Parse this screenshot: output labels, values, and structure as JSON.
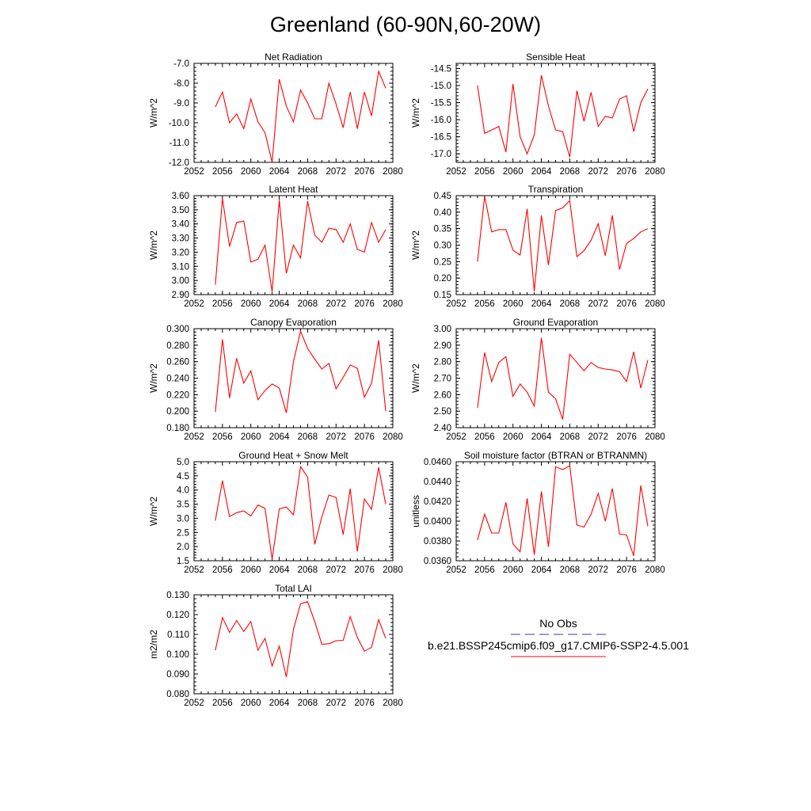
{
  "title": "Greenland (60-90N,60-20W)",
  "colors": {
    "series": "#ff0000",
    "obs": "#3a3aa0",
    "axis": "#000000"
  },
  "legend": {
    "obs_label": "No Obs",
    "model_label": "b.e21.BSSP245cmip6.f09_g17.CMIP6-SSP2-4.5.001"
  },
  "chart_data": [
    {
      "type": "line",
      "title": "Net Radiation",
      "ylabel": "W/m^2",
      "xlim": [
        2052,
        2080
      ],
      "ylim": [
        -12.0,
        -7.0
      ],
      "xticks": [
        2052,
        2056,
        2060,
        2064,
        2068,
        2072,
        2076,
        2080
      ],
      "yticks": [
        "-7.0",
        "-8.0",
        "-9.0",
        "-10.0",
        "-11.0",
        "-12.0"
      ],
      "x": [
        2055,
        2056,
        2057,
        2058,
        2059,
        2060,
        2061,
        2062,
        2063,
        2064,
        2065,
        2066,
        2067,
        2068,
        2069,
        2070,
        2071,
        2072,
        2073,
        2074,
        2075,
        2076,
        2077,
        2078,
        2079
      ],
      "series": [
        {
          "values": [
            -9.2,
            -8.45,
            -10.0,
            -9.55,
            -10.3,
            -8.8,
            -9.95,
            -10.5,
            -12.0,
            -7.8,
            -9.15,
            -9.95,
            -8.35,
            -9.0,
            -9.8,
            -9.8,
            -8.0,
            -9.05,
            -10.25,
            -8.45,
            -10.3,
            -8.45,
            -9.65,
            -7.4,
            -8.25
          ]
        }
      ]
    },
    {
      "type": "line",
      "title": "Sensible Heat",
      "ylabel": "W/m^2",
      "xlim": [
        2052,
        2080
      ],
      "ylim": [
        -17.25,
        -14.35
      ],
      "xticks": [
        2052,
        2056,
        2060,
        2064,
        2068,
        2072,
        2076,
        2080
      ],
      "yticks": [
        "-14.5",
        "-15.0",
        "-15.5",
        "-16.0",
        "-16.5",
        "-17.0"
      ],
      "x": [
        2055,
        2056,
        2057,
        2058,
        2059,
        2060,
        2061,
        2062,
        2063,
        2064,
        2065,
        2066,
        2067,
        2068,
        2069,
        2070,
        2071,
        2072,
        2073,
        2074,
        2075,
        2076,
        2077,
        2078,
        2079
      ],
      "series": [
        {
          "values": [
            -15.0,
            -16.4,
            -16.3,
            -16.2,
            -16.95,
            -14.95,
            -16.5,
            -17.0,
            -16.45,
            -14.7,
            -15.6,
            -16.3,
            -16.35,
            -17.1,
            -15.15,
            -16.05,
            -15.2,
            -16.2,
            -15.9,
            -15.95,
            -15.4,
            -15.3,
            -16.35,
            -15.5,
            -15.1
          ]
        }
      ]
    },
    {
      "type": "line",
      "title": "Latent Heat",
      "ylabel": "W/m^2",
      "xlim": [
        2052,
        2080
      ],
      "ylim": [
        2.9,
        3.6
      ],
      "xticks": [
        2052,
        2056,
        2060,
        2064,
        2068,
        2072,
        2076,
        2080
      ],
      "yticks": [
        "3.60",
        "3.50",
        "3.40",
        "3.30",
        "3.20",
        "3.10",
        "3.00",
        "2.90"
      ],
      "x": [
        2055,
        2056,
        2057,
        2058,
        2059,
        2060,
        2061,
        2062,
        2063,
        2064,
        2065,
        2066,
        2067,
        2068,
        2069,
        2070,
        2071,
        2072,
        2073,
        2074,
        2075,
        2076,
        2077,
        2078,
        2079
      ],
      "series": [
        {
          "values": [
            2.97,
            3.58,
            3.24,
            3.41,
            3.42,
            3.13,
            3.15,
            3.25,
            2.92,
            3.57,
            3.05,
            3.25,
            3.16,
            3.56,
            3.32,
            3.27,
            3.37,
            3.36,
            3.27,
            3.4,
            3.22,
            3.2,
            3.41,
            3.27,
            3.36
          ]
        }
      ]
    },
    {
      "type": "line",
      "title": "Transpiration",
      "ylabel": "W/m^2",
      "xlim": [
        2052,
        2080
      ],
      "ylim": [
        0.15,
        0.45
      ],
      "xticks": [
        2052,
        2056,
        2060,
        2064,
        2068,
        2072,
        2076,
        2080
      ],
      "yticks": [
        "0.45",
        "0.40",
        "0.35",
        "0.30",
        "0.25",
        "0.20",
        "0.15"
      ],
      "x": [
        2055,
        2056,
        2057,
        2058,
        2059,
        2060,
        2061,
        2062,
        2063,
        2064,
        2065,
        2066,
        2067,
        2068,
        2069,
        2070,
        2071,
        2072,
        2073,
        2074,
        2075,
        2076,
        2077,
        2078,
        2079
      ],
      "series": [
        {
          "values": [
            0.25,
            0.448,
            0.34,
            0.347,
            0.347,
            0.285,
            0.27,
            0.41,
            0.16,
            0.39,
            0.24,
            0.405,
            0.413,
            0.435,
            0.265,
            0.283,
            0.315,
            0.365,
            0.268,
            0.39,
            0.226,
            0.305,
            0.32,
            0.34,
            0.35
          ]
        }
      ]
    },
    {
      "type": "line",
      "title": "Canopy Evaporation",
      "ylabel": "W/m^2",
      "xlim": [
        2052,
        2080
      ],
      "ylim": [
        0.18,
        0.3
      ],
      "xticks": [
        2052,
        2056,
        2060,
        2064,
        2068,
        2072,
        2076,
        2080
      ],
      "yticks": [
        "0.300",
        "0.280",
        "0.260",
        "0.240",
        "0.220",
        "0.200",
        "0.180"
      ],
      "x": [
        2055,
        2056,
        2057,
        2058,
        2059,
        2060,
        2061,
        2062,
        2063,
        2064,
        2065,
        2066,
        2067,
        2068,
        2069,
        2070,
        2071,
        2072,
        2073,
        2074,
        2075,
        2076,
        2077,
        2078,
        2079
      ],
      "series": [
        {
          "values": [
            0.199,
            0.287,
            0.216,
            0.264,
            0.234,
            0.249,
            0.214,
            0.225,
            0.233,
            0.228,
            0.198,
            0.26,
            0.297,
            0.276,
            0.263,
            0.251,
            0.258,
            0.227,
            0.241,
            0.256,
            0.252,
            0.217,
            0.234,
            0.286,
            0.2
          ]
        }
      ]
    },
    {
      "type": "line",
      "title": "Ground Evaporation",
      "ylabel": "W/m^2",
      "xlim": [
        2052,
        2080
      ],
      "ylim": [
        2.4,
        3.0
      ],
      "xticks": [
        2052,
        2056,
        2060,
        2064,
        2068,
        2072,
        2076,
        2080
      ],
      "yticks": [
        "3.00",
        "2.90",
        "2.80",
        "2.70",
        "2.60",
        "2.50",
        "2.40"
      ],
      "x": [
        2055,
        2056,
        2057,
        2058,
        2059,
        2060,
        2061,
        2062,
        2063,
        2064,
        2065,
        2066,
        2067,
        2068,
        2069,
        2070,
        2071,
        2072,
        2073,
        2074,
        2075,
        2076,
        2077,
        2078,
        2079
      ],
      "series": [
        {
          "values": [
            2.52,
            2.855,
            2.68,
            2.795,
            2.83,
            2.59,
            2.665,
            2.615,
            2.53,
            2.945,
            2.615,
            2.575,
            2.45,
            2.845,
            2.795,
            2.745,
            2.795,
            2.765,
            2.755,
            2.75,
            2.74,
            2.68,
            2.86,
            2.64,
            2.81
          ]
        }
      ]
    },
    {
      "type": "line",
      "title": "Ground Heat + Snow Melt",
      "ylabel": "W/m^2",
      "xlim": [
        2052,
        2080
      ],
      "ylim": [
        1.5,
        5.0
      ],
      "xticks": [
        2052,
        2056,
        2060,
        2064,
        2068,
        2072,
        2076,
        2080
      ],
      "yticks": [
        "5.0",
        "4.5",
        "4.0",
        "3.5",
        "3.0",
        "2.5",
        "2.0",
        "1.5"
      ],
      "x": [
        2055,
        2056,
        2057,
        2058,
        2059,
        2060,
        2061,
        2062,
        2063,
        2064,
        2065,
        2066,
        2067,
        2068,
        2069,
        2070,
        2071,
        2072,
        2073,
        2074,
        2075,
        2076,
        2077,
        2078,
        2079
      ],
      "series": [
        {
          "values": [
            2.92,
            4.33,
            3.06,
            3.2,
            3.26,
            3.08,
            3.47,
            3.35,
            1.55,
            3.33,
            3.4,
            3.12,
            4.83,
            4.45,
            2.08,
            3.05,
            3.82,
            3.74,
            2.42,
            4.05,
            1.83,
            3.68,
            3.32,
            4.8,
            3.5
          ]
        }
      ]
    },
    {
      "type": "line",
      "title": "Soil moisture factor (BTRAN or BTRANMN)",
      "ylabel": "unitless",
      "xlim": [
        2052,
        2080
      ],
      "ylim": [
        0.036,
        0.046
      ],
      "xticks": [
        2052,
        2056,
        2060,
        2064,
        2068,
        2072,
        2076,
        2080
      ],
      "yticks": [
        "0.0460",
        "0.0440",
        "0.0420",
        "0.0400",
        "0.0380",
        "0.0360"
      ],
      "x": [
        2055,
        2056,
        2057,
        2058,
        2059,
        2060,
        2061,
        2062,
        2063,
        2064,
        2065,
        2066,
        2067,
        2068,
        2069,
        2070,
        2071,
        2072,
        2073,
        2074,
        2075,
        2076,
        2077,
        2078,
        2079
      ],
      "series": [
        {
          "values": [
            0.0381,
            0.0407,
            0.0388,
            0.0388,
            0.0419,
            0.0377,
            0.0369,
            0.0423,
            0.0366,
            0.043,
            0.0374,
            0.0455,
            0.0452,
            0.0456,
            0.0396,
            0.0394,
            0.0407,
            0.0428,
            0.04,
            0.0433,
            0.0387,
            0.0386,
            0.0365,
            0.0436,
            0.0395
          ]
        }
      ]
    },
    {
      "type": "line",
      "title": "Total LAI",
      "ylabel": "m2/m2",
      "xlim": [
        2052,
        2080
      ],
      "ylim": [
        0.08,
        0.13
      ],
      "xticks": [
        2052,
        2056,
        2060,
        2064,
        2068,
        2072,
        2076,
        2080
      ],
      "yticks": [
        "0.130",
        "0.120",
        "0.110",
        "0.100",
        "0.090",
        "0.080"
      ],
      "x": [
        2055,
        2056,
        2057,
        2058,
        2059,
        2060,
        2061,
        2062,
        2063,
        2064,
        2065,
        2066,
        2067,
        2068,
        2069,
        2070,
        2071,
        2072,
        2073,
        2074,
        2075,
        2076,
        2077,
        2078,
        2079
      ],
      "series": [
        {
          "values": [
            0.102,
            0.1185,
            0.111,
            0.117,
            0.1115,
            0.1165,
            0.102,
            0.108,
            0.094,
            0.104,
            0.0885,
            0.1125,
            0.1255,
            0.1265,
            0.1165,
            0.105,
            0.1053,
            0.1068,
            0.107,
            0.119,
            0.1085,
            0.1015,
            0.1035,
            0.1175,
            0.108
          ]
        }
      ]
    }
  ]
}
